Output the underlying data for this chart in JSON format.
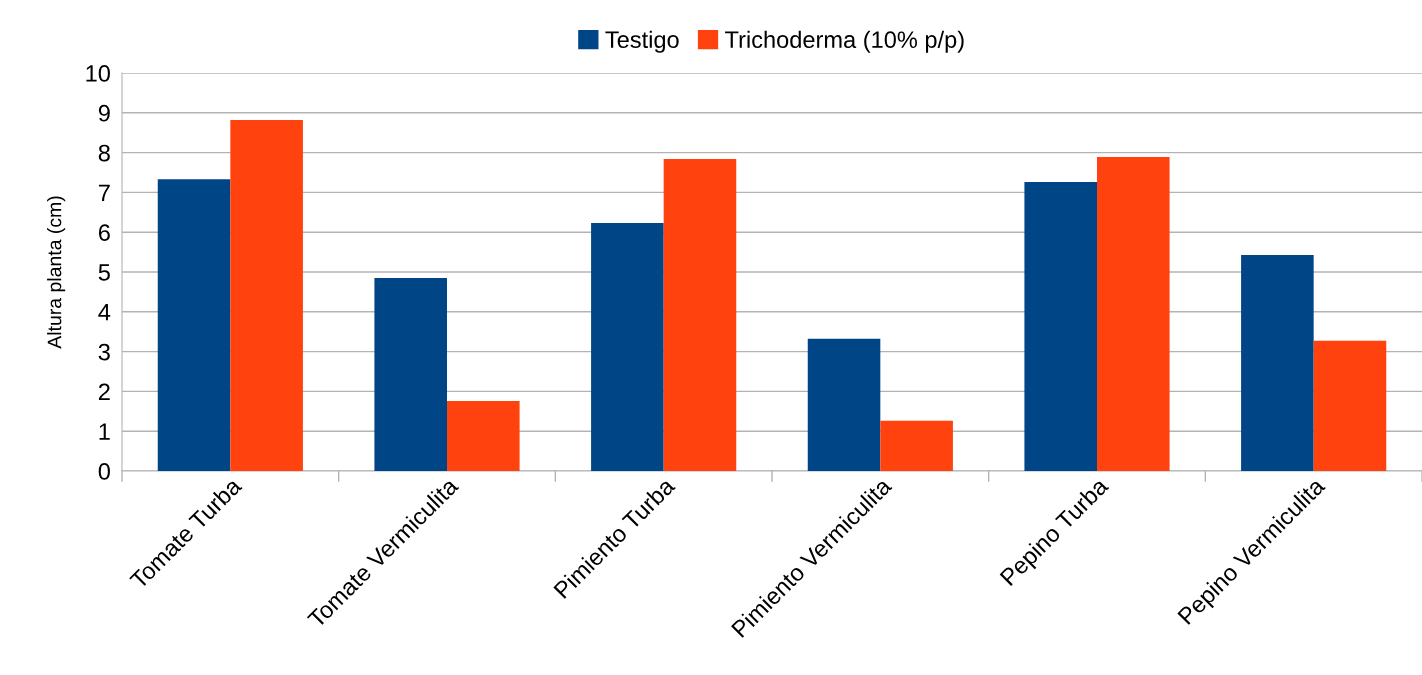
{
  "chart_data": {
    "type": "bar",
    "ylabel": "Altura planta (cm)",
    "categories": [
      "Tomate Turba",
      "Tomate Vermiculita",
      "Pimiento Turba",
      "Pimiento Vermiculita",
      "Pepino Turba",
      "Pepino Vermiculita"
    ],
    "series": [
      {
        "name": "Testigo",
        "color": "#004586",
        "values": [
          7.33,
          4.85,
          6.23,
          3.32,
          7.26,
          5.43
        ]
      },
      {
        "name": "Trichoderma (10% p/p)",
        "color": "#ff420e",
        "values": [
          8.82,
          1.76,
          7.84,
          1.26,
          7.89,
          3.27
        ]
      }
    ],
    "ylim": [
      0,
      10
    ],
    "yticks": [
      0,
      1,
      2,
      3,
      4,
      5,
      6,
      7,
      8,
      9,
      10
    ],
    "grid": "y",
    "legend": "top"
  }
}
